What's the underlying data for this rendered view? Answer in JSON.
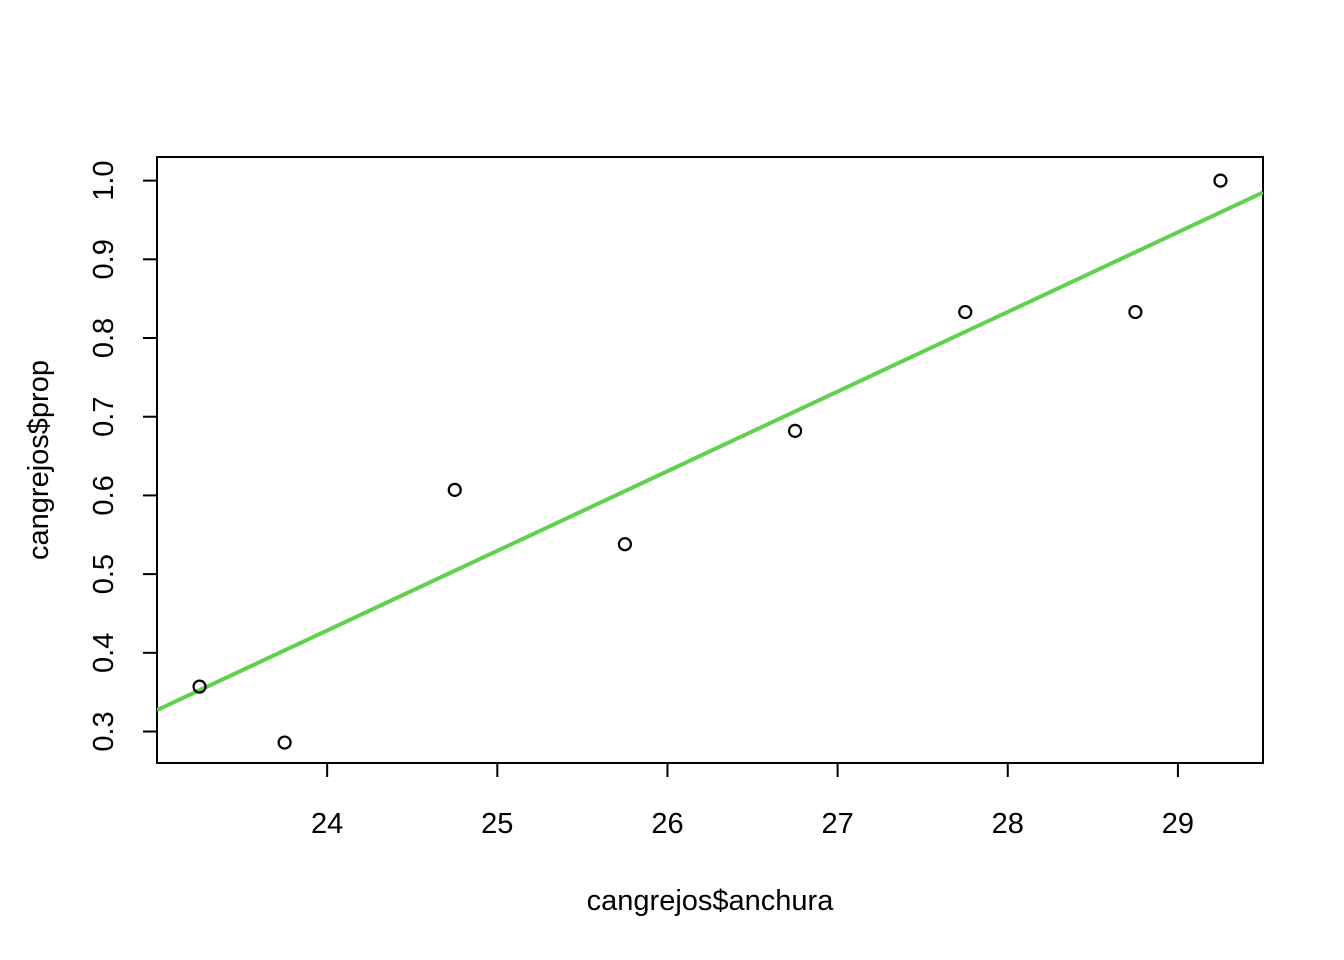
{
  "chart_data": {
    "type": "scatter",
    "title": "",
    "xlabel": "cangrejos$anchura",
    "ylabel": "cangrejos$prop",
    "xlim": [
      23.0,
      29.5
    ],
    "ylim": [
      0.26,
      1.03
    ],
    "x_ticks": [
      24,
      25,
      26,
      27,
      28,
      29
    ],
    "y_ticks": [
      0.3,
      0.4,
      0.5,
      0.6,
      0.7,
      0.8,
      0.9,
      1.0
    ],
    "x_tick_labels": [
      "24",
      "25",
      "26",
      "27",
      "28",
      "29"
    ],
    "y_tick_labels": [
      "0.3",
      "0.4",
      "0.5",
      "0.6",
      "0.7",
      "0.8",
      "0.9",
      "1.0"
    ],
    "grid": false,
    "points": {
      "x": [
        23.25,
        23.75,
        24.75,
        25.75,
        26.75,
        27.75,
        28.75,
        29.25
      ],
      "y": [
        0.357,
        0.286,
        0.607,
        0.538,
        0.682,
        0.833,
        0.833,
        1.0
      ]
    },
    "fit_line": {
      "intercept": -2.0004,
      "slope": 0.1012,
      "color": "#61D04F"
    },
    "point_color": "#000000"
  }
}
